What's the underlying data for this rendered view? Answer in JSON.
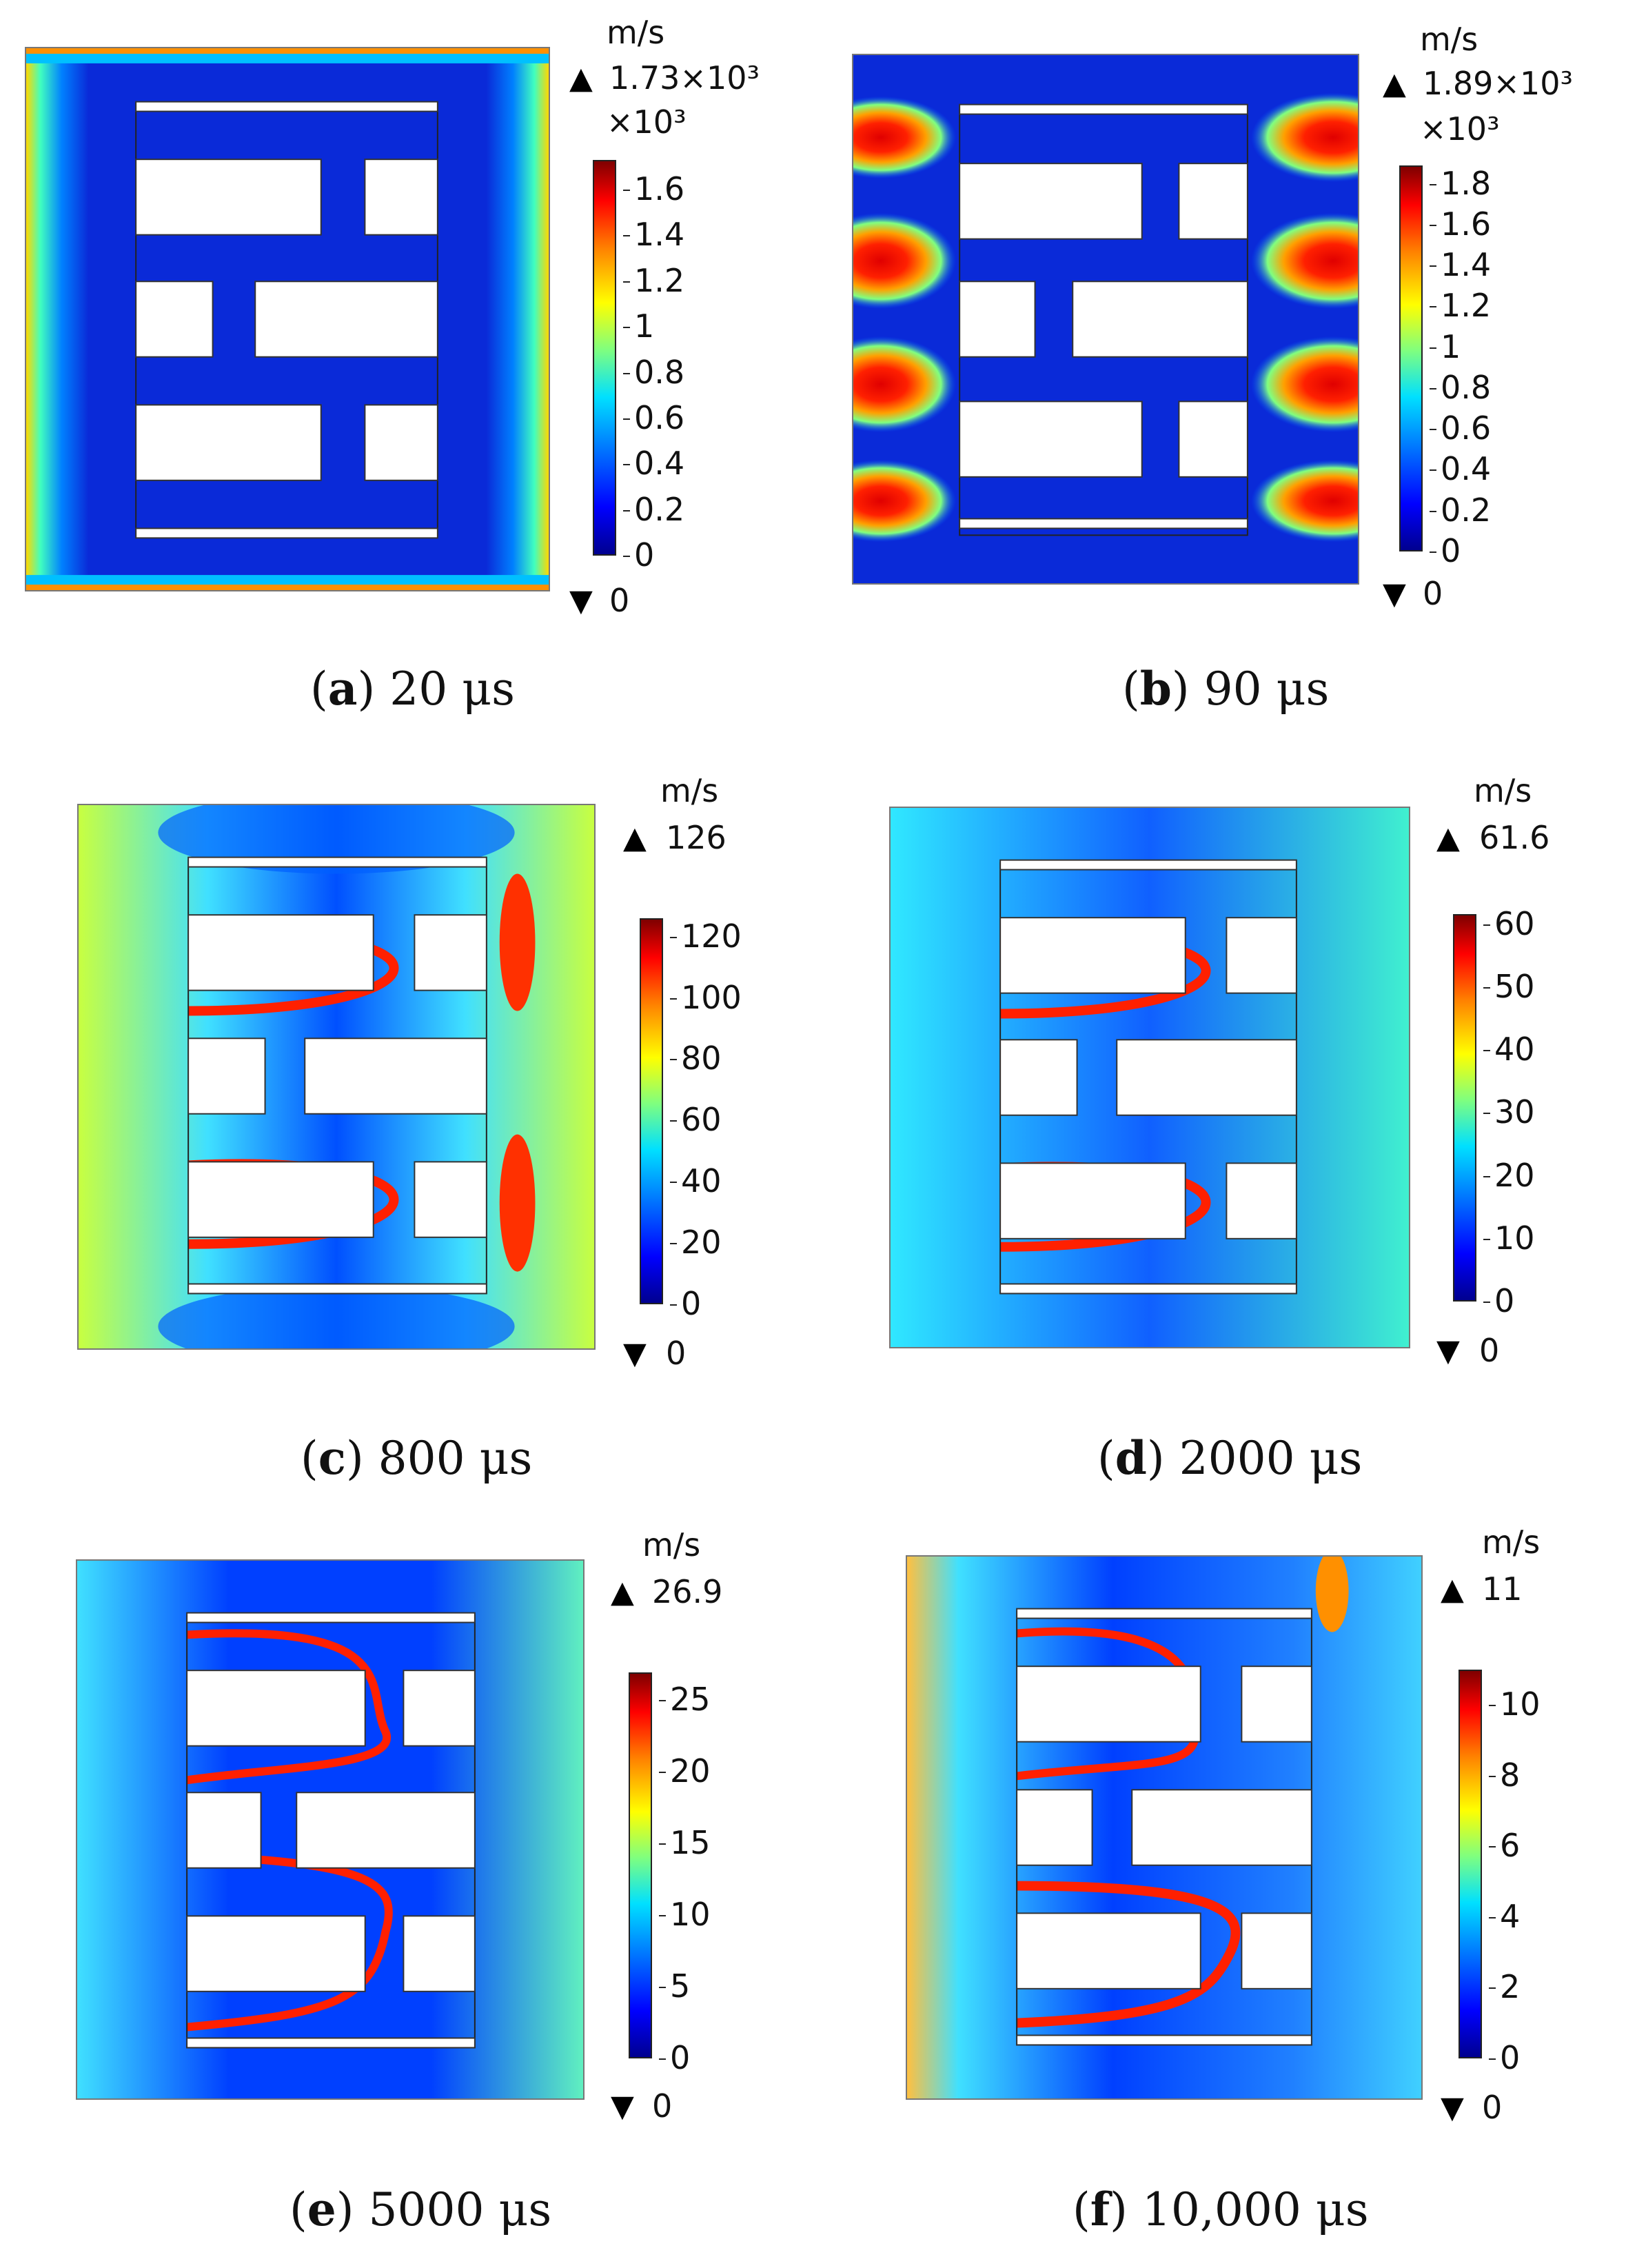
{
  "panels": [
    {
      "id": "a",
      "caption_letter": "a",
      "caption_time": "20",
      "unit_label": "μs",
      "color_unit": "m/s",
      "max": "1.73×10³",
      "multiplier": "×10³",
      "min": "0",
      "ticks": [
        "1.6",
        "1.4",
        "1.2",
        "1",
        "0.8",
        "0.6",
        "0.4",
        "0.2",
        "0"
      ],
      "scale_max": 1.73,
      "tick_vals": [
        1.6,
        1.4,
        1.2,
        1,
        0.8,
        0.6,
        0.4,
        0.2,
        0
      ]
    },
    {
      "id": "b",
      "caption_letter": "b",
      "caption_time": "90",
      "unit_label": "μs",
      "color_unit": "m/s",
      "max": "1.89×10³",
      "multiplier": "×10³",
      "min": "0",
      "ticks": [
        "1.8",
        "1.6",
        "1.4",
        "1.2",
        "1",
        "0.8",
        "0.6",
        "0.4",
        "0.2",
        "0"
      ],
      "scale_max": 1.89,
      "tick_vals": [
        1.8,
        1.6,
        1.4,
        1.2,
        1,
        0.8,
        0.6,
        0.4,
        0.2,
        0
      ]
    },
    {
      "id": "c",
      "caption_letter": "c",
      "caption_time": "800",
      "unit_label": "μs",
      "color_unit": "m/s",
      "max": "126",
      "multiplier": "",
      "min": "0",
      "ticks": [
        "120",
        "100",
        "80",
        "60",
        "40",
        "20",
        "0"
      ],
      "scale_max": 126,
      "tick_vals": [
        120,
        100,
        80,
        60,
        40,
        20,
        0
      ]
    },
    {
      "id": "d",
      "caption_letter": "d",
      "caption_time": "2000",
      "unit_label": "μs",
      "color_unit": "m/s",
      "max": "61.6",
      "multiplier": "",
      "min": "0",
      "ticks": [
        "60",
        "50",
        "40",
        "30",
        "20",
        "10",
        "0"
      ],
      "scale_max": 61.6,
      "tick_vals": [
        60,
        50,
        40,
        30,
        20,
        10,
        0
      ]
    },
    {
      "id": "e",
      "caption_letter": "e",
      "caption_time": "5000",
      "unit_label": "μs",
      "color_unit": "m/s",
      "max": "26.9",
      "multiplier": "",
      "min": "0",
      "ticks": [
        "25",
        "20",
        "15",
        "10",
        "5",
        "0"
      ],
      "scale_max": 26.9,
      "tick_vals": [
        25,
        20,
        15,
        10,
        5,
        0
      ]
    },
    {
      "id": "f",
      "caption_letter": "f",
      "caption_time": "10,000",
      "unit_label": "μs",
      "color_unit": "m/s",
      "max": "11",
      "multiplier": "",
      "min": "0",
      "ticks": [
        "10",
        "8",
        "6",
        "4",
        "2",
        "0"
      ],
      "scale_max": 11,
      "tick_vals": [
        10,
        8,
        6,
        4,
        2,
        0
      ]
    }
  ]
}
